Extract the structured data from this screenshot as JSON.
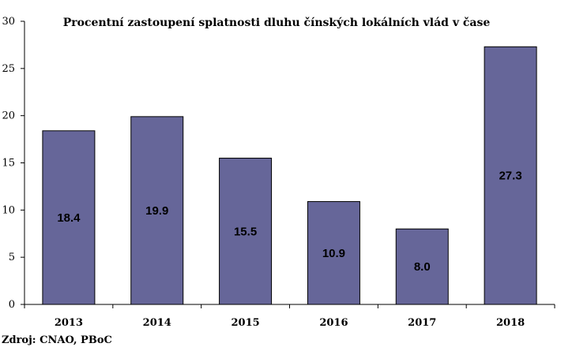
{
  "chart_data": {
    "type": "bar",
    "title": "Procentní zastoupení splatnosti dluhu čínských lokálních vlád v čase",
    "categories": [
      "2013",
      "2014",
      "2015",
      "2016",
      "2017",
      "2018"
    ],
    "values": [
      18.4,
      19.9,
      15.5,
      10.9,
      8.0,
      27.3
    ],
    "value_labels": [
      "18.4",
      "19.9",
      "15.5",
      "10.9",
      "8.0",
      "27.3"
    ],
    "yticks": [
      0,
      5,
      10,
      15,
      20,
      25,
      30
    ],
    "ylim": [
      0,
      30
    ],
    "grid": false,
    "legend": "none",
    "bar_color": "#666699",
    "bar_edge_color": "#000000"
  },
  "source": "Zdroj: CNAO, PBoC"
}
